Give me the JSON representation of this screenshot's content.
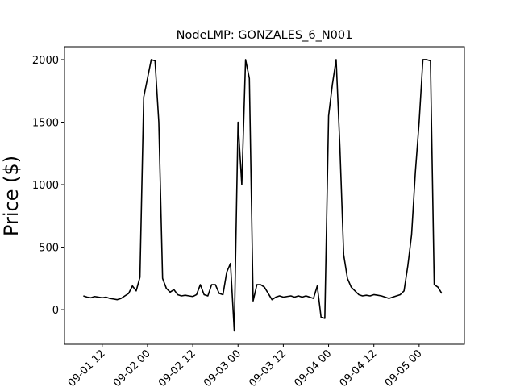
{
  "chart_data": {
    "type": "line",
    "title": "NodeLMP: GONZALES_6_N001",
    "ylabel": "Price ($)",
    "x": [
      "09-01 07",
      "09-01 08",
      "09-01 09",
      "09-01 10",
      "09-01 11",
      "09-01 12",
      "09-01 13",
      "09-01 14",
      "09-01 15",
      "09-01 16",
      "09-01 17",
      "09-01 18",
      "09-01 19",
      "09-01 20",
      "09-01 21",
      "09-01 22",
      "09-01 23",
      "09-02 00",
      "09-02 01",
      "09-02 02",
      "09-02 03",
      "09-02 04",
      "09-02 05",
      "09-02 06",
      "09-02 07",
      "09-02 08",
      "09-02 09",
      "09-02 10",
      "09-02 11",
      "09-02 12",
      "09-02 13",
      "09-02 14",
      "09-02 15",
      "09-02 16",
      "09-02 17",
      "09-02 18",
      "09-02 19",
      "09-02 20",
      "09-02 21",
      "09-02 22",
      "09-02 23",
      "09-03 00",
      "09-03 01",
      "09-03 02",
      "09-03 03",
      "09-03 04",
      "09-03 05",
      "09-03 06",
      "09-03 07",
      "09-03 08",
      "09-03 09",
      "09-03 10",
      "09-03 11",
      "09-03 12",
      "09-03 13",
      "09-03 14",
      "09-03 15",
      "09-03 16",
      "09-03 17",
      "09-03 18",
      "09-03 19",
      "09-03 20",
      "09-03 21",
      "09-03 22",
      "09-03 23",
      "09-04 00",
      "09-04 01",
      "09-04 02",
      "09-04 03",
      "09-04 04",
      "09-04 05",
      "09-04 06",
      "09-04 07",
      "09-04 08",
      "09-04 09",
      "09-04 10",
      "09-04 11",
      "09-04 12",
      "09-04 13",
      "09-04 14",
      "09-04 15",
      "09-04 16",
      "09-04 17",
      "09-04 18",
      "09-04 19",
      "09-04 20",
      "09-04 21",
      "09-04 22",
      "09-04 23",
      "09-05 00",
      "09-05 01",
      "09-05 02",
      "09-05 03",
      "09-05 04",
      "09-05 05",
      "09-05 06"
    ],
    "series": [
      {
        "color": "#000000",
        "values": [
          110,
          100,
          95,
          105,
          100,
          95,
          100,
          90,
          85,
          80,
          90,
          110,
          130,
          190,
          150,
          260,
          1700,
          1850,
          2000,
          1990,
          1500,
          250,
          170,
          140,
          160,
          120,
          110,
          115,
          110,
          105,
          120,
          200,
          120,
          110,
          200,
          200,
          130,
          120,
          300,
          370,
          -170,
          1500,
          1000,
          2000,
          1850,
          70,
          200,
          200,
          180,
          130,
          80,
          100,
          110,
          100,
          105,
          110,
          100,
          110,
          100,
          110,
          100,
          90,
          190,
          -60,
          -70,
          1550,
          1800,
          2000,
          1300,
          440,
          250,
          180,
          150,
          120,
          110,
          115,
          110,
          120,
          115,
          110,
          100,
          90,
          100,
          110,
          120,
          150,
          350,
          600,
          1100,
          1500,
          2000,
          2000,
          1990,
          200,
          180,
          130
        ]
      }
    ],
    "xlim": [
      "09-01 02",
      "09-05 12"
    ],
    "xticks": [
      "09-01 12",
      "09-02 00",
      "09-02 12",
      "09-03 00",
      "09-03 12",
      "09-04 00",
      "09-04 12",
      "09-05 00"
    ],
    "ylim": [
      -277,
      2103
    ],
    "yticks": [
      0,
      500,
      1000,
      1500,
      2000
    ]
  }
}
